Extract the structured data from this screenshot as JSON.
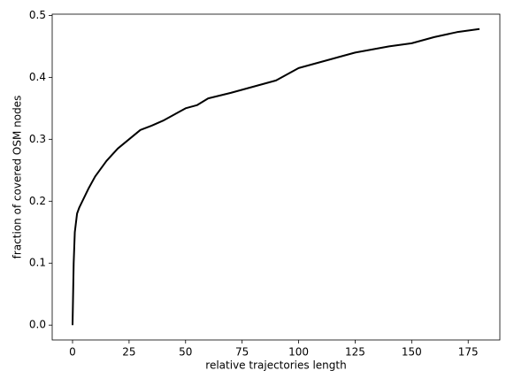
{
  "chart_data": {
    "type": "line",
    "xlabel": "relative trajectories length",
    "ylabel": "fraction of covered OSM nodes",
    "x": [
      0,
      0.5,
      1,
      2,
      3,
      5,
      7,
      10,
      12,
      15,
      20,
      25,
      30,
      35,
      40,
      45,
      50,
      55,
      60,
      70,
      80,
      90,
      100,
      110,
      125,
      140,
      150,
      160,
      170,
      180
    ],
    "values": [
      0,
      0.1,
      0.15,
      0.18,
      0.19,
      0.205,
      0.22,
      0.24,
      0.25,
      0.265,
      0.285,
      0.3,
      0.315,
      0.322,
      0.33,
      0.34,
      0.35,
      0.355,
      0.366,
      0.375,
      0.385,
      0.395,
      0.415,
      0.425,
      0.44,
      0.45,
      0.455,
      0.465,
      0.473,
      0.478
    ],
    "color": "#000000",
    "xlim": [
      -9,
      189
    ],
    "ylim": [
      -0.024,
      0.502
    ],
    "xticks": [
      0,
      25,
      50,
      75,
      100,
      125,
      150,
      175
    ],
    "yticks": [
      {
        "value": 0,
        "label": "0.0"
      },
      0.1,
      0.2,
      0.3,
      0.4,
      0.5
    ]
  }
}
